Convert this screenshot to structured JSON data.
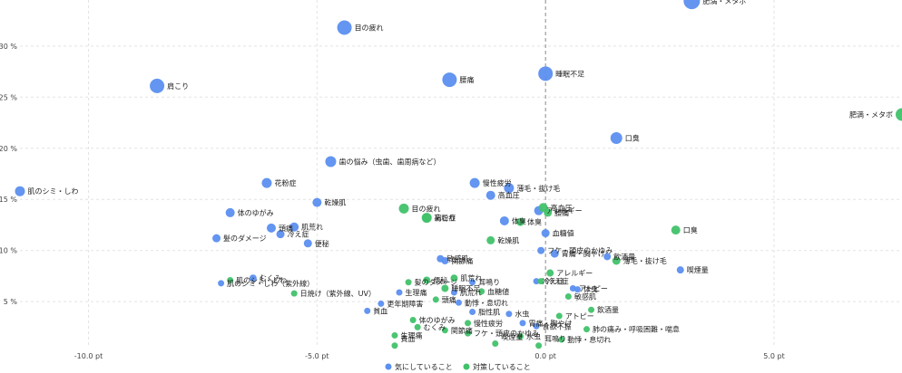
{
  "chart_data": {
    "type": "scatter",
    "x_ticks": [
      "-10.0 pt",
      "-5.0 pt",
      "0.0 pt",
      "5.0 pt"
    ],
    "y_ticks": [
      "5 %",
      "10 %",
      "15 %",
      "20 %",
      "25 %",
      "30 %"
    ],
    "xlim": [
      -11.5,
      7.8
    ],
    "ylim": [
      0.5,
      34.5
    ],
    "legend": {
      "position": "bottom"
    },
    "series": [
      {
        "name": "気にしていること",
        "color": "#5b8ff0",
        "points": [
          {
            "label": "肥満・メタボ",
            "x": 3.2,
            "y": 34.4,
            "r": 9
          },
          {
            "label": "目の疲れ",
            "x": -4.4,
            "y": 31.8,
            "r": 8
          },
          {
            "label": "睡眠不足",
            "x": 0.0,
            "y": 27.3,
            "r": 8
          },
          {
            "label": "腰痛",
            "x": -2.1,
            "y": 26.7,
            "r": 8
          },
          {
            "label": "肩こり",
            "x": -8.5,
            "y": 26.1,
            "r": 8
          },
          {
            "label": "口臭",
            "x": 1.55,
            "y": 21.0,
            "r": 6.5
          },
          {
            "label": "歯の悩み（虫歯、歯周病など）",
            "x": -4.7,
            "y": 18.7,
            "r": 6
          },
          {
            "label": "花粉症",
            "x": -6.1,
            "y": 16.6,
            "r": 5.5
          },
          {
            "label": "肌のシミ・しわ",
            "x": -11.5,
            "y": 15.8,
            "r": 5.5
          },
          {
            "label": "慢性疲労",
            "x": -1.55,
            "y": 16.6,
            "r": 5.5
          },
          {
            "label": "薄毛・抜け毛",
            "x": -0.8,
            "y": 16.1,
            "r": 5.5
          },
          {
            "label": "乾燥肌",
            "x": -5.0,
            "y": 14.7,
            "r": 5
          },
          {
            "label": "高血圧",
            "x": -1.2,
            "y": 15.4,
            "r": 5
          },
          {
            "label": "アレルギー",
            "x": -0.15,
            "y": 13.9,
            "r": 5
          },
          {
            "label": "体のゆがみ",
            "x": -6.9,
            "y": 13.7,
            "r": 5
          },
          {
            "label": "体臭",
            "x": -0.9,
            "y": 12.9,
            "r": 5
          },
          {
            "label": "肌荒れ",
            "x": -5.5,
            "y": 12.3,
            "r": 5
          },
          {
            "label": "頭痛",
            "x": -6.0,
            "y": 12.2,
            "r": 5
          },
          {
            "label": "冷え症",
            "x": -5.8,
            "y": 11.6,
            "r": 4.5
          },
          {
            "label": "血糖値",
            "x": 0.0,
            "y": 11.7,
            "r": 4.5
          },
          {
            "label": "髪のダメージ",
            "x": -7.2,
            "y": 11.2,
            "r": 4.5
          },
          {
            "label": "便秘",
            "x": -5.2,
            "y": 10.7,
            "r": 4.5
          },
          {
            "label": "胃痛・胸やけ",
            "x": 0.2,
            "y": 9.7,
            "r": 4.5
          },
          {
            "label": "フケ・頭皮のかゆみ",
            "x": -0.1,
            "y": 10.0,
            "r": 4
          },
          {
            "label": "飲酒量",
            "x": 1.35,
            "y": 9.4,
            "r": 4
          },
          {
            "label": "関節痛",
            "x": -2.2,
            "y": 9.0,
            "r": 4
          },
          {
            "label": "敏感肌",
            "x": -2.3,
            "y": 9.2,
            "r": 4
          },
          {
            "label": "喫煙量",
            "x": 2.95,
            "y": 8.1,
            "r": 4
          },
          {
            "label": "むくみ",
            "x": -6.4,
            "y": 7.3,
            "r": 4
          },
          {
            "label": "肌のシミ・しわ（紫外線）",
            "x": -7.1,
            "y": 6.8,
            "r": 3.5
          },
          {
            "label": "耳鳴り",
            "x": -1.6,
            "y": 6.9,
            "r": 3.5
          },
          {
            "label": "冷え症",
            "x": -0.2,
            "y": 7.0,
            "r": 3.5
          },
          {
            "label": "アトピー",
            "x": 0.6,
            "y": 6.3,
            "r": 3.5
          },
          {
            "label": "体臭",
            "x": 0.7,
            "y": 6.2,
            "r": 3.5
          },
          {
            "label": "生理痛",
            "x": -3.2,
            "y": 5.9,
            "r": 3.5
          },
          {
            "label": "肌荒れ",
            "x": -2.0,
            "y": 5.9,
            "r": 3.5
          },
          {
            "label": "動悸・息切れ",
            "x": -1.9,
            "y": 4.9,
            "r": 3.5
          },
          {
            "label": "更年期障害",
            "x": -3.6,
            "y": 4.8,
            "r": 3.5
          },
          {
            "label": "貧血",
            "x": -3.9,
            "y": 4.1,
            "r": 3.5
          },
          {
            "label": "脂性肌",
            "x": -1.6,
            "y": 4.0,
            "r": 3.5
          },
          {
            "label": "水虫",
            "x": -0.8,
            "y": 3.8,
            "r": 3.5
          },
          {
            "label": "胃痛・胸やけ",
            "x": -0.5,
            "y": 2.9,
            "r": 3.5
          },
          {
            "label": "食欲不振",
            "x": -0.2,
            "y": 2.6,
            "r": 3.5
          }
        ]
      },
      {
        "name": "対策していること",
        "color": "#41c26a",
        "points": [
          {
            "label": "肥満・メタボ",
            "x": 7.8,
            "y": 23.3,
            "r": 7
          },
          {
            "label": "目の疲れ",
            "x": -3.1,
            "y": 14.1,
            "r": 5.5
          },
          {
            "label": "肩こり",
            "x": -2.6,
            "y": 13.2,
            "r": 5.5
          },
          {
            "label": "花粉症",
            "x": -2.6,
            "y": 13.2,
            "r": 5
          },
          {
            "label": "高血圧",
            "x": -0.05,
            "y": 14.2,
            "r": 5
          },
          {
            "label": "腰痛",
            "x": 0.05,
            "y": 13.7,
            "r": 4.5
          },
          {
            "label": "口臭",
            "x": 2.85,
            "y": 12.0,
            "r": 5
          },
          {
            "label": "乾燥肌",
            "x": -1.2,
            "y": 11.0,
            "r": 4.5
          },
          {
            "label": "体臭",
            "x": -0.55,
            "y": 12.8,
            "r": 4.5
          },
          {
            "label": "薄毛・抜け毛",
            "x": 1.55,
            "y": 9.0,
            "r": 4.5
          },
          {
            "label": "アレルギー",
            "x": 0.1,
            "y": 7.8,
            "r": 4
          },
          {
            "label": "便秘",
            "x": -2.6,
            "y": 7.1,
            "r": 4
          },
          {
            "label": "肌荒れ",
            "x": -2.0,
            "y": 7.3,
            "r": 4
          },
          {
            "label": "睡眠不足",
            "x": -2.2,
            "y": 6.3,
            "r": 4
          },
          {
            "label": "冷え症",
            "x": -0.1,
            "y": 7.0,
            "r": 3.5
          },
          {
            "label": "髪のダメージ",
            "x": -3.0,
            "y": 6.9,
            "r": 3.5
          },
          {
            "label": "肌のシミ・しわ",
            "x": -6.9,
            "y": 7.1,
            "r": 3.5
          },
          {
            "label": "日焼け（紫外線、UV）",
            "x": -5.5,
            "y": 5.8,
            "r": 3.5
          },
          {
            "label": "血糖値",
            "x": -1.4,
            "y": 6.0,
            "r": 3.5
          },
          {
            "label": "敏感肌",
            "x": 0.5,
            "y": 5.5,
            "r": 3.5
          },
          {
            "label": "頭痛",
            "x": -2.4,
            "y": 5.2,
            "r": 3.5
          },
          {
            "label": "飲酒量",
            "x": 1.0,
            "y": 4.2,
            "r": 3.5
          },
          {
            "label": "アトピー",
            "x": 0.3,
            "y": 3.6,
            "r": 3.5
          },
          {
            "label": "体のゆがみ",
            "x": -2.9,
            "y": 3.2,
            "r": 3.5
          },
          {
            "label": "慢性疲労",
            "x": -1.7,
            "y": 2.9,
            "r": 3.5
          },
          {
            "label": "むくみ",
            "x": -2.8,
            "y": 2.5,
            "r": 3.5
          },
          {
            "label": "関節痛",
            "x": -2.2,
            "y": 2.2,
            "r": 3.5
          },
          {
            "label": "肺の痛み・呼吸困難・喘息",
            "x": 0.9,
            "y": 2.3,
            "r": 3.5
          },
          {
            "label": "生理痛",
            "x": -3.3,
            "y": 1.7,
            "r": 3.5
          },
          {
            "label": "フケ・頭皮のかゆみ",
            "x": -1.7,
            "y": 1.9,
            "r": 3.5
          },
          {
            "label": "動悸・息切れ",
            "x": 0.35,
            "y": 1.3,
            "r": 3.5
          },
          {
            "label": "水虫",
            "x": -0.55,
            "y": 1.6,
            "r": 3.5
          },
          {
            "label": "喫煙量",
            "x": -1.1,
            "y": 0.9,
            "r": 3.5
          },
          {
            "label": "耳鳴り",
            "x": -0.15,
            "y": 0.7,
            "r": 3.5
          },
          {
            "label": "貧血",
            "x": -3.3,
            "y": 0.7,
            "r": 3.5
          }
        ]
      }
    ]
  }
}
